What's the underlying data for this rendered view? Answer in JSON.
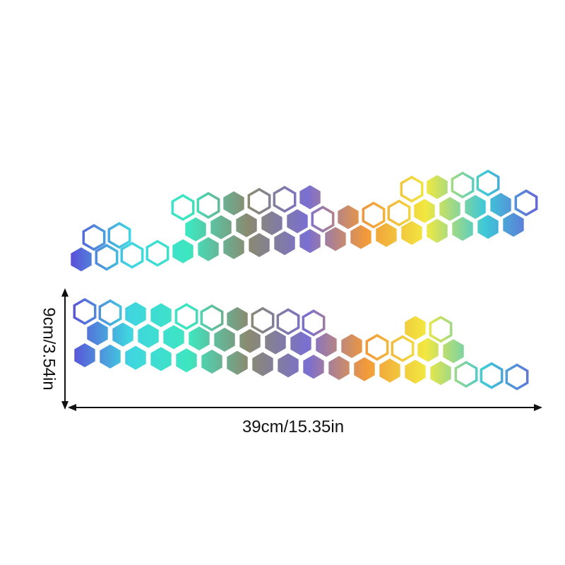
{
  "product": {
    "height_label": "9cm/3.54in",
    "width_label": "39cm/15.35in"
  },
  "colors": {
    "iridescent_stops": [
      "#5b4fd8",
      "#3fd6e0",
      "#3ee6c0",
      "#8a8a70",
      "#7a6fd0",
      "#f29a3a",
      "#f2e840",
      "#3ec8d8",
      "#6a5ad8"
    ],
    "dimension_line": "#111111"
  }
}
